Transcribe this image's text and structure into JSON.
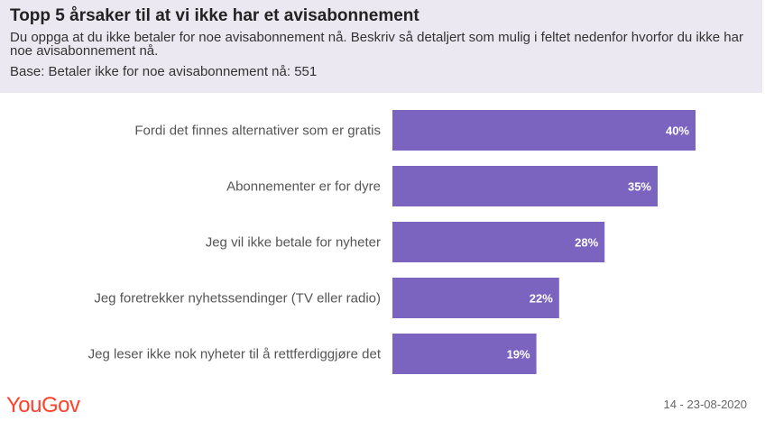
{
  "header": {
    "title": "Topp 5 årsaker til at vi ikke har et avisabonnement",
    "subtitle": "Du oppga at du ikke betaler for noe avisabonnement nå. Beskriv så detaljert som mulig i feltet nedenfor hvorfor du ikke har noe avisabonnement nå.",
    "base": "Base: Betaler ikke for noe avisabonnement nå: 551"
  },
  "footer": {
    "logo": "YouGov",
    "date": "14 - 23-08-2020"
  },
  "colors": {
    "bar": "#7b63c0",
    "header_bg": "#ebe8f2",
    "logo": "#ff412c"
  },
  "chart_data": {
    "type": "bar",
    "orientation": "horizontal",
    "categories": [
      "Fordi det finnes alternativer som er gratis",
      "Abonnementer er for dyre",
      "Jeg vil ikke betale for nyheter",
      "Jeg foretrekker nyhetssendinger (TV eller radio)",
      "Jeg leser ikke nok nyheter til å rettferdiggjøre det"
    ],
    "values": [
      40,
      35,
      28,
      22,
      19
    ],
    "value_labels": [
      "40%",
      "35%",
      "28%",
      "22%",
      "19%"
    ],
    "xlim": [
      0,
      55
    ],
    "grid": false,
    "legend": "none"
  }
}
